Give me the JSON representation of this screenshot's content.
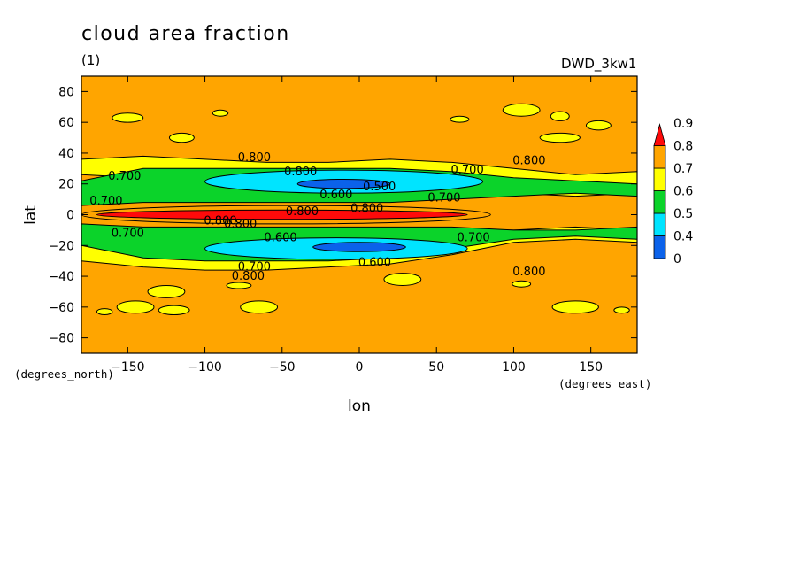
{
  "chart_data": {
    "type": "heatmap",
    "title": "cloud area fraction",
    "subtitle": "(1)",
    "model_label": "DWD_3kw1",
    "xlabel": "lon",
    "ylabel": "lat",
    "x_unit": "(degrees_east)",
    "y_unit": "(degrees_north)",
    "xlim": [
      -180,
      180
    ],
    "ylim": [
      -90,
      90
    ],
    "x_ticks": [
      -150,
      -100,
      -50,
      0,
      50,
      100,
      150
    ],
    "y_ticks": [
      -80,
      -60,
      -40,
      -20,
      0,
      20,
      40,
      60,
      80
    ],
    "x_tick_labels": [
      "−150",
      "−100",
      "−50",
      "0",
      "50",
      "100",
      "150"
    ],
    "y_tick_labels": [
      "−80",
      "−60",
      "−40",
      "−20",
      "0",
      "20",
      "40",
      "60",
      "80"
    ],
    "legend_levels": [
      "0",
      "0.4",
      "0.5",
      "0.6",
      "0.7",
      "0.8",
      "0.9"
    ],
    "legend_colors": [
      "#0b62ea",
      "#00e4ff",
      "#0bd32a",
      "#ffff00",
      "#ffa500",
      "#ff0a0a"
    ],
    "legend_placement": "right",
    "background_color": "#ffa500",
    "bands": [
      {
        "name": "yellow-band-north",
        "level": 0.7,
        "color": "#ffff00",
        "lon": [
          -180,
          180
        ],
        "lat_south": [
          26,
          24,
          22,
          20,
          20,
          22,
          18,
          14,
          12,
          14
        ],
        "lat_north": [
          36,
          38,
          36,
          34,
          34,
          36,
          34,
          30,
          26,
          28
        ]
      },
      {
        "name": "yellow-band-south",
        "level": 0.7,
        "color": "#ffff00",
        "lon": [
          -180,
          180
        ],
        "lat_south": [
          -30,
          -34,
          -36,
          -36,
          -34,
          -32,
          -26,
          -18,
          -16,
          -18
        ],
        "lat_north": [
          -14,
          -12,
          -10,
          -10,
          -10,
          -12,
          -10,
          -10,
          -8,
          -10
        ]
      },
      {
        "name": "green-band-north",
        "level": 0.6,
        "color": "#0bd32a",
        "lon": [
          -180,
          180
        ],
        "lat_south": [
          6,
          8,
          8,
          8,
          8,
          8,
          10,
          12,
          14,
          12
        ],
        "lat_north": [
          22,
          30,
          30,
          30,
          30,
          30,
          28,
          24,
          22,
          20
        ]
      },
      {
        "name": "green-band-south",
        "level": 0.6,
        "color": "#0bd32a",
        "lon": [
          -180,
          180
        ],
        "lat_south": [
          -20,
          -28,
          -30,
          -30,
          -30,
          -28,
          -22,
          -16,
          -14,
          -16
        ],
        "lat_north": [
          -6,
          -8,
          -8,
          -8,
          -8,
          -8,
          -8,
          -10,
          -10,
          -8
        ]
      }
    ],
    "blobs": [
      {
        "name": "cyan-region-north",
        "level": 0.5,
        "color": "#00e4ff",
        "lon": [
          -100,
          80
        ],
        "lat": [
          14,
          29
        ]
      },
      {
        "name": "blue-region-north",
        "level": 0.4,
        "color": "#0b62ea",
        "lon": [
          -40,
          20
        ],
        "lat": [
          17,
          23
        ]
      },
      {
        "name": "cyan-region-south",
        "level": 0.5,
        "color": "#00e4ff",
        "lon": [
          -100,
          70
        ],
        "lat": [
          -29,
          -15
        ]
      },
      {
        "name": "blue-region-south",
        "level": 0.4,
        "color": "#0b62ea",
        "lon": [
          -30,
          30
        ],
        "lat": [
          -24,
          -18
        ]
      },
      {
        "name": "orange-band-equator",
        "level": 0.8,
        "color": "#ffa500",
        "lon": [
          -180,
          85
        ],
        "lat": [
          -6,
          6
        ]
      },
      {
        "name": "red-region-equator",
        "level": 0.9,
        "color": "#ff0a0a",
        "lon": [
          -170,
          70
        ],
        "lat": [
          -3,
          3
        ]
      }
    ],
    "contour_labels": [
      {
        "text": "0.800",
        "lon": -68,
        "lat": 37
      },
      {
        "text": "0.800",
        "lon": -38,
        "lat": 28
      },
      {
        "text": "0.700",
        "lon": -152,
        "lat": 25
      },
      {
        "text": "0.700",
        "lon": 70,
        "lat": 29
      },
      {
        "text": "0.800",
        "lon": 110,
        "lat": 35
      },
      {
        "text": "0.700",
        "lon": -164,
        "lat": 9
      },
      {
        "text": "0.600",
        "lon": -15,
        "lat": 13
      },
      {
        "text": "0.500",
        "lon": 13,
        "lat": 18
      },
      {
        "text": "0.700",
        "lon": 55,
        "lat": 11
      },
      {
        "text": "0.800",
        "lon": -37,
        "lat": 2
      },
      {
        "text": "0.800",
        "lon": 5,
        "lat": 4
      },
      {
        "text": "0.800",
        "lon": -90,
        "lat": -4
      },
      {
        "text": "0.800",
        "lon": -77,
        "lat": -6
      },
      {
        "text": "0.700",
        "lon": -150,
        "lat": -12
      },
      {
        "text": "0.600",
        "lon": -51,
        "lat": -15
      },
      {
        "text": "0.700",
        "lon": 74,
        "lat": -15
      },
      {
        "text": "0.600",
        "lon": 10,
        "lat": -31
      },
      {
        "text": "0.700",
        "lon": -68,
        "lat": -34
      },
      {
        "text": "0.800",
        "lon": -72,
        "lat": -40
      },
      {
        "text": "0.800",
        "lon": 110,
        "lat": -37
      }
    ],
    "islands": [
      {
        "name": "yellow-patch",
        "lon": -150,
        "lat": 63,
        "rx": 10,
        "ry": 3
      },
      {
        "name": "yellow-patch",
        "lon": -115,
        "lat": 50,
        "rx": 8,
        "ry": 3
      },
      {
        "name": "yellow-patch",
        "lon": 105,
        "lat": 68,
        "rx": 12,
        "ry": 4
      },
      {
        "name": "yellow-patch",
        "lon": 130,
        "lat": 50,
        "rx": 13,
        "ry": 3
      },
      {
        "name": "yellow-patch",
        "lon": 130,
        "lat": 64,
        "rx": 6,
        "ry": 3
      },
      {
        "name": "yellow-patch",
        "lon": 155,
        "lat": 58,
        "rx": 8,
        "ry": 3
      },
      {
        "name": "yellow-patch",
        "lon": 65,
        "lat": 62,
        "rx": 6,
        "ry": 2
      },
      {
        "name": "yellow-patch",
        "lon": -90,
        "lat": 66,
        "rx": 5,
        "ry": 2
      },
      {
        "name": "yellow-patch",
        "lon": -125,
        "lat": -50,
        "rx": 12,
        "ry": 4
      },
      {
        "name": "yellow-patch",
        "lon": -145,
        "lat": -60,
        "rx": 12,
        "ry": 4
      },
      {
        "name": "yellow-patch",
        "lon": -120,
        "lat": -62,
        "rx": 10,
        "ry": 3
      },
      {
        "name": "yellow-patch",
        "lon": -65,
        "lat": -60,
        "rx": 12,
        "ry": 4
      },
      {
        "name": "yellow-patch",
        "lon": -165,
        "lat": -63,
        "rx": 5,
        "ry": 2
      },
      {
        "name": "yellow-patch",
        "lon": -78,
        "lat": -46,
        "rx": 8,
        "ry": 2
      },
      {
        "name": "yellow-patch",
        "lon": 140,
        "lat": -60,
        "rx": 15,
        "ry": 4
      },
      {
        "name": "yellow-patch",
        "lon": 28,
        "lat": -42,
        "rx": 12,
        "ry": 4
      },
      {
        "name": "yellow-patch",
        "lon": 105,
        "lat": -45,
        "rx": 6,
        "ry": 2
      },
      {
        "name": "yellow-patch",
        "lon": 170,
        "lat": -62,
        "rx": 5,
        "ry": 2
      }
    ]
  }
}
